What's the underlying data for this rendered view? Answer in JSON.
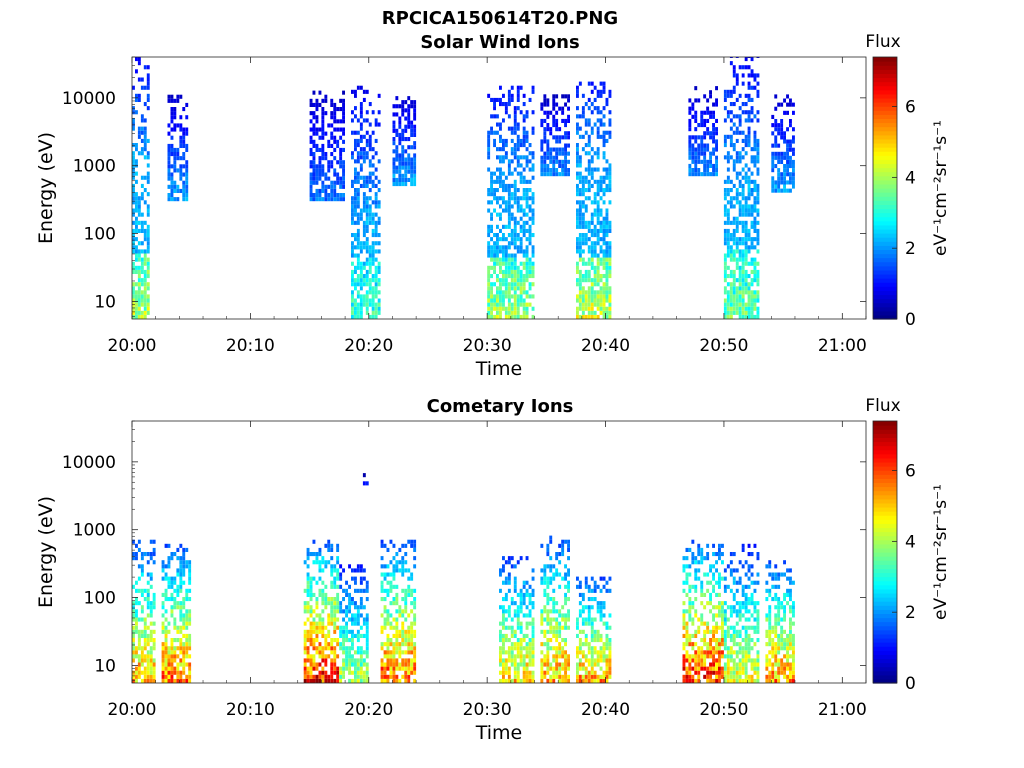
{
  "figure": {
    "title": "RPCICA150614T20.PNG"
  },
  "colorbar": {
    "label": "Flux",
    "unit": "eV⁻¹cm⁻²sr⁻¹s⁻¹",
    "range": [
      0,
      7.4
    ],
    "ticks": [
      "0",
      "2",
      "4",
      "6"
    ],
    "tick_values": [
      0,
      2,
      4,
      6
    ],
    "colormap": "jet"
  },
  "chart_data": [
    {
      "type": "heatmap",
      "title": "Solar Wind Ions",
      "xlabel": "Time",
      "ylabel": "Energy (eV)",
      "x_unit": "minutes after 20:00",
      "xlim": [
        "20:00",
        "21:02"
      ],
      "x_ticks": [
        "20:00",
        "20:10",
        "20:20",
        "20:30",
        "20:40",
        "20:50",
        "21:00"
      ],
      "y_scale": "log",
      "ylim": [
        5.5,
        40000
      ],
      "y_ticks": [
        "10",
        "100",
        "1000",
        "10000"
      ],
      "z_label": "Flux",
      "bursts": [
        {
          "start": "20:00",
          "end": "20:01.5",
          "e_min": 5.5,
          "e_max": 35000,
          "peak_flux": 4.5
        },
        {
          "start": "20:03",
          "end": "20:04.7",
          "e_min": 300,
          "e_max": 10000,
          "peak_flux": 2.4
        },
        {
          "start": "20:15",
          "end": "20:18",
          "e_min": 300,
          "e_max": 12000,
          "peak_flux": 2.0
        },
        {
          "start": "20:18.5",
          "end": "20:21",
          "e_min": 5.5,
          "e_max": 15000,
          "peak_flux": 3.6
        },
        {
          "start": "20:22",
          "end": "20:24",
          "e_min": 500,
          "e_max": 10000,
          "peak_flux": 2.4
        },
        {
          "start": "20:30",
          "end": "20:34",
          "e_min": 5.5,
          "e_max": 14000,
          "peak_flux": 4.4
        },
        {
          "start": "20:34.5",
          "end": "20:37",
          "e_min": 700,
          "e_max": 10000,
          "peak_flux": 2.2
        },
        {
          "start": "20:37.5",
          "end": "20:40.5",
          "e_min": 5.5,
          "e_max": 17000,
          "peak_flux": 4.8
        },
        {
          "start": "20:47",
          "end": "20:49.5",
          "e_min": 700,
          "e_max": 14000,
          "peak_flux": 2.2
        },
        {
          "start": "20:50",
          "end": "20:53",
          "e_min": 5.5,
          "e_max": 40000,
          "peak_flux": 4.0
        },
        {
          "start": "20:54",
          "end": "20:56",
          "e_min": 400,
          "e_max": 10000,
          "peak_flux": 2.4
        }
      ]
    },
    {
      "type": "heatmap",
      "title": "Cometary Ions",
      "xlabel": "Time",
      "ylabel": "Energy (eV)",
      "x_unit": "minutes after 20:00",
      "xlim": [
        "20:00",
        "21:02"
      ],
      "x_ticks": [
        "20:00",
        "20:10",
        "20:20",
        "20:30",
        "20:40",
        "20:50",
        "21:00"
      ],
      "y_scale": "log",
      "ylim": [
        5.5,
        40000
      ],
      "y_ticks": [
        "10",
        "100",
        "1000",
        "10000"
      ],
      "z_label": "Flux",
      "bursts": [
        {
          "start": "20:00",
          "end": "20:02",
          "e_min": 5.5,
          "e_max": 700,
          "peak_flux": 6.0
        },
        {
          "start": "20:02.5",
          "end": "20:05",
          "e_min": 5.5,
          "e_max": 600,
          "peak_flux": 6.4
        },
        {
          "start": "20:14.5",
          "end": "20:17.5",
          "e_min": 5.5,
          "e_max": 700,
          "peak_flux": 7.2
        },
        {
          "start": "20:17.5",
          "end": "20:20",
          "e_min": 5.5,
          "e_max": 300,
          "peak_flux": 4.6
        },
        {
          "start": "20:19.5",
          "end": "20:20",
          "e_min": 4500,
          "e_max": 6000,
          "peak_flux": 1.4
        },
        {
          "start": "20:21",
          "end": "20:24",
          "e_min": 5.5,
          "e_max": 700,
          "peak_flux": 6.6
        },
        {
          "start": "20:31",
          "end": "20:34",
          "e_min": 5.5,
          "e_max": 400,
          "peak_flux": 5.6
        },
        {
          "start": "20:34.5",
          "end": "20:37",
          "e_min": 5.5,
          "e_max": 800,
          "peak_flux": 6.0
        },
        {
          "start": "20:37.5",
          "end": "20:40.5",
          "e_min": 5.5,
          "e_max": 200,
          "peak_flux": 6.0
        },
        {
          "start": "20:46.5",
          "end": "20:50",
          "e_min": 5.5,
          "e_max": 700,
          "peak_flux": 7.0
        },
        {
          "start": "20:50",
          "end": "20:53",
          "e_min": 5.5,
          "e_max": 550,
          "peak_flux": 5.2
        },
        {
          "start": "20:53.5",
          "end": "20:56",
          "e_min": 5.5,
          "e_max": 350,
          "peak_flux": 6.2
        }
      ]
    }
  ]
}
